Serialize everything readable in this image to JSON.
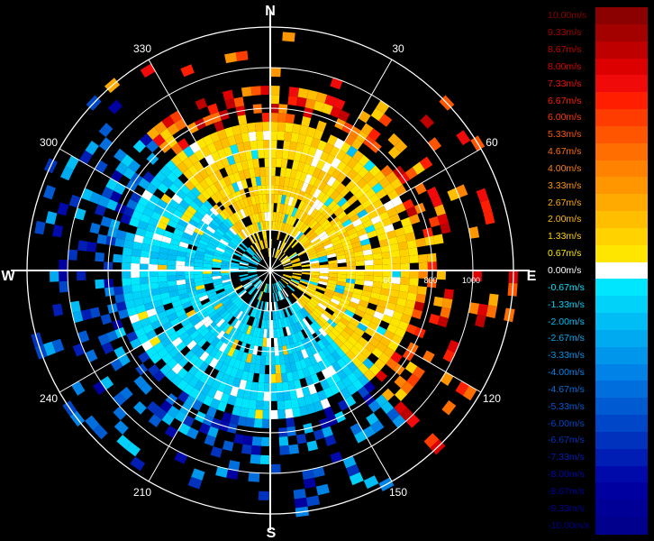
{
  "chart_data": {
    "type": "heatmap",
    "subtype": "polar radial-velocity display",
    "compass": {
      "north": "N",
      "east": "E",
      "south": "S",
      "west": "W"
    },
    "azimuth_labels": [
      {
        "azimuth": 30,
        "label": "30"
      },
      {
        "azimuth": 60,
        "label": "60"
      },
      {
        "azimuth": 120,
        "label": "120"
      },
      {
        "azimuth": 150,
        "label": "150"
      },
      {
        "azimuth": 210,
        "label": "210"
      },
      {
        "azimuth": 240,
        "label": "240"
      },
      {
        "azimuth": 300,
        "label": "300"
      },
      {
        "azimuth": 330,
        "label": "330"
      }
    ],
    "range_labels": [
      {
        "range": 600,
        "label": "600"
      },
      {
        "range": 800,
        "label": "800"
      },
      {
        "range": 1000,
        "label": "1000"
      }
    ],
    "range_rings": [
      200,
      400,
      600,
      800,
      1000,
      1200
    ],
    "range_max": 1200,
    "colorbar": [
      {
        "label": "10.00m/s",
        "value": 10.0,
        "color": "#8b0000"
      },
      {
        "label": "9.33m/s",
        "value": 9.33,
        "color": "#a30000"
      },
      {
        "label": "8.67m/s",
        "value": 8.67,
        "color": "#bf0000"
      },
      {
        "label": "8.00m/s",
        "value": 8.0,
        "color": "#dd0000"
      },
      {
        "label": "7.33m/s",
        "value": 7.33,
        "color": "#f00a0a"
      },
      {
        "label": "6.67m/s",
        "value": 6.67,
        "color": "#ff1e00"
      },
      {
        "label": "6.00m/s",
        "value": 6.0,
        "color": "#ff3c00"
      },
      {
        "label": "5.33m/s",
        "value": 5.33,
        "color": "#ff5500"
      },
      {
        "label": "4.67m/s",
        "value": 4.67,
        "color": "#ff6e00"
      },
      {
        "label": "4.00m/s",
        "value": 4.0,
        "color": "#ff8200"
      },
      {
        "label": "3.33m/s",
        "value": 3.33,
        "color": "#ff9600"
      },
      {
        "label": "2.67m/s",
        "value": 2.67,
        "color": "#ffaa00"
      },
      {
        "label": "2.00m/s",
        "value": 2.0,
        "color": "#ffbe00"
      },
      {
        "label": "1.33m/s",
        "value": 1.33,
        "color": "#ffd200"
      },
      {
        "label": "0.67m/s",
        "value": 0.67,
        "color": "#ffe600"
      },
      {
        "label": "0.00m/s",
        "value": 0.0,
        "color": "#ffffff"
      },
      {
        "label": "-0.67m/s",
        "value": -0.67,
        "color": "#00e6ff"
      },
      {
        "label": "-1.33m/s",
        "value": -1.33,
        "color": "#00d2fa"
      },
      {
        "label": "-2.00m/s",
        "value": -2.0,
        "color": "#00bef5"
      },
      {
        "label": "-2.67m/s",
        "value": -2.67,
        "color": "#00aaf0"
      },
      {
        "label": "-3.33m/s",
        "value": -3.33,
        "color": "#0096eb"
      },
      {
        "label": "-4.00m/s",
        "value": -4.0,
        "color": "#0082e6"
      },
      {
        "label": "-4.67m/s",
        "value": -4.67,
        "color": "#006edc"
      },
      {
        "label": "-5.33m/s",
        "value": -5.33,
        "color": "#005ad2"
      },
      {
        "label": "-6.00m/s",
        "value": -6.0,
        "color": "#0046c8"
      },
      {
        "label": "-6.67m/s",
        "value": -6.67,
        "color": "#0032be"
      },
      {
        "label": "-7.33m/s",
        "value": -7.33,
        "color": "#001eb4"
      },
      {
        "label": "-8.00m/s",
        "value": -8.0,
        "color": "#000aaa"
      },
      {
        "label": "-8.67m/s",
        "value": -8.67,
        "color": "#0000a0"
      },
      {
        "label": "-9.33m/s",
        "value": -9.33,
        "color": "#000096"
      },
      {
        "label": "-10.00m/s",
        "value": -10.0,
        "color": "#00008c"
      }
    ],
    "grid": true
  }
}
